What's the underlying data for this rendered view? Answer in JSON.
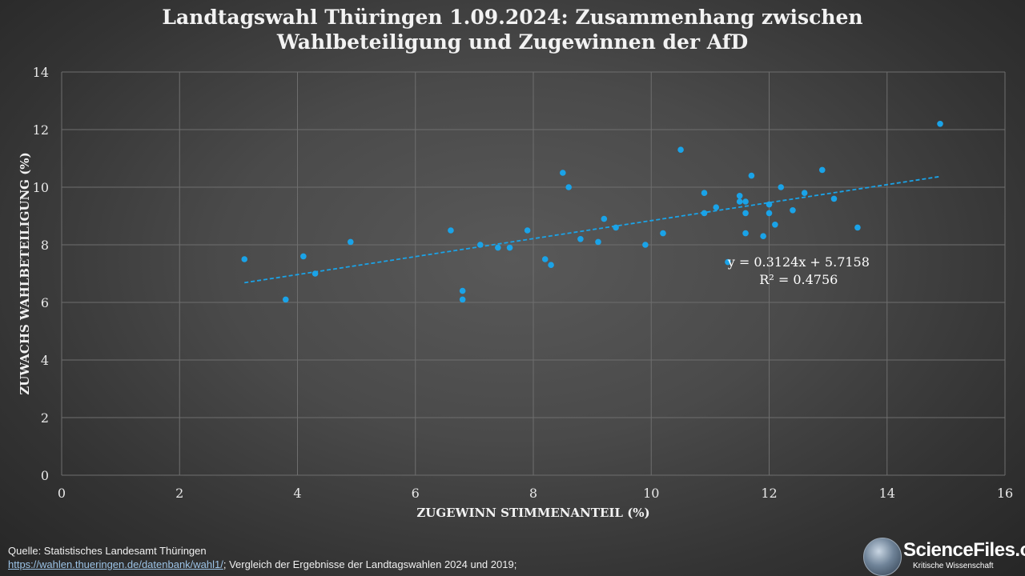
{
  "title": {
    "line1": "Landtagswahl Thüringen 1.09.2024: Zusammenhang zwischen",
    "line2": "Wahlbeteiligung und Zugewinnen der AfD"
  },
  "chart_data": {
    "type": "scatter",
    "xlabel": "ZUGEWINN STIMMENANTEIL (%)",
    "ylabel": "ZUWACHS WAHLBETEILIGUNG (%)",
    "xlim": [
      0,
      16
    ],
    "ylim": [
      0,
      14
    ],
    "xticks": [
      0,
      2,
      4,
      6,
      8,
      10,
      12,
      14,
      16
    ],
    "yticks": [
      0,
      2,
      4,
      6,
      8,
      10,
      12,
      14
    ],
    "grid": true,
    "point_color": "#1aa3e8",
    "trendline": {
      "slope": 0.3124,
      "intercept": 5.7158,
      "x_range": [
        3.1,
        14.9
      ],
      "equation": "y = 0.3124x + 5.7158",
      "r_squared": "R² = 0.4756",
      "color": "#1aa3e8",
      "style": "dashed"
    },
    "points": [
      {
        "x": 3.1,
        "y": 7.5
      },
      {
        "x": 3.8,
        "y": 6.1
      },
      {
        "x": 4.1,
        "y": 7.6
      },
      {
        "x": 4.3,
        "y": 7.0
      },
      {
        "x": 4.9,
        "y": 8.1
      },
      {
        "x": 6.6,
        "y": 8.5
      },
      {
        "x": 6.8,
        "y": 6.4
      },
      {
        "x": 6.8,
        "y": 6.1
      },
      {
        "x": 7.1,
        "y": 8.0
      },
      {
        "x": 7.4,
        "y": 7.9
      },
      {
        "x": 7.6,
        "y": 7.9
      },
      {
        "x": 7.9,
        "y": 8.5
      },
      {
        "x": 8.2,
        "y": 7.5
      },
      {
        "x": 8.3,
        "y": 7.3
      },
      {
        "x": 8.5,
        "y": 10.5
      },
      {
        "x": 8.6,
        "y": 10.0
      },
      {
        "x": 8.8,
        "y": 8.2
      },
      {
        "x": 9.1,
        "y": 8.1
      },
      {
        "x": 9.2,
        "y": 8.9
      },
      {
        "x": 9.4,
        "y": 8.6
      },
      {
        "x": 9.9,
        "y": 8.0
      },
      {
        "x": 10.2,
        "y": 8.4
      },
      {
        "x": 10.5,
        "y": 11.3
      },
      {
        "x": 10.9,
        "y": 9.8
      },
      {
        "x": 10.9,
        "y": 9.1
      },
      {
        "x": 11.1,
        "y": 9.3
      },
      {
        "x": 11.3,
        "y": 7.4
      },
      {
        "x": 11.5,
        "y": 9.7
      },
      {
        "x": 11.5,
        "y": 9.5
      },
      {
        "x": 11.6,
        "y": 9.5
      },
      {
        "x": 11.6,
        "y": 9.1
      },
      {
        "x": 11.6,
        "y": 8.4
      },
      {
        "x": 11.7,
        "y": 10.4
      },
      {
        "x": 11.9,
        "y": 8.3
      },
      {
        "x": 12.0,
        "y": 9.4
      },
      {
        "x": 12.0,
        "y": 9.1
      },
      {
        "x": 12.1,
        "y": 8.7
      },
      {
        "x": 12.2,
        "y": 10.0
      },
      {
        "x": 12.4,
        "y": 9.2
      },
      {
        "x": 12.6,
        "y": 9.8
      },
      {
        "x": 12.9,
        "y": 10.6
      },
      {
        "x": 13.1,
        "y": 9.6
      },
      {
        "x": 13.5,
        "y": 8.6
      },
      {
        "x": 14.9,
        "y": 12.2
      }
    ]
  },
  "footer": {
    "source": "Quelle: Statistisches Landesamt Thüringen",
    "link": "https://wahlen.thueringen.de/datenbank/wahl1/",
    "note": "; Vergleich der Ergebnisse der Landtagswahlen 2024 und 2019;"
  },
  "logo": {
    "brand": "ScienceFiles.org",
    "tagline": "Kritische Wissenschaft"
  }
}
